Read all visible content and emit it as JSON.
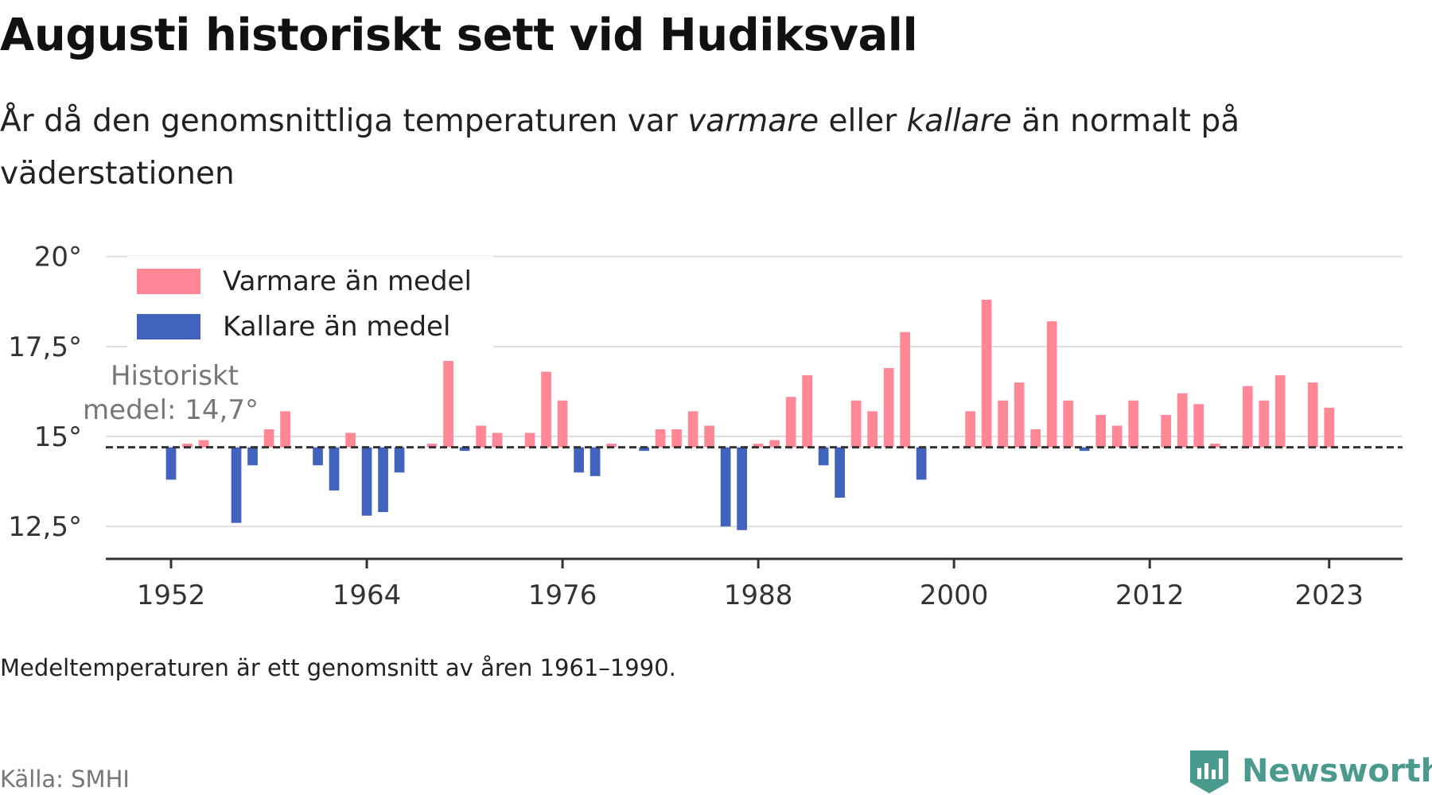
{
  "title": "Augusti historiskt sett vid Hudiksvall",
  "subtitle": {
    "part1": "År då den genomsnittliga temperaturen var ",
    "warm_word": "varmare",
    "part2": " eller ",
    "cold_word": "kallare",
    "part3": " än normalt på väderstationen"
  },
  "footnote": "Medeltemperaturen är ett genomsnitt av åren 1961–1990.",
  "source": "Källa: SMHI",
  "logo": {
    "text": "Newsworthy",
    "icon": "newsworthy-logo-icon",
    "color": "#4a9a8e"
  },
  "chart_data": {
    "type": "bar",
    "baseline": 14.7,
    "baseline_label": [
      "Historiskt",
      "medel: 14,7°"
    ],
    "ylim": [
      11.6,
      20.5
    ],
    "y_ticks": [
      12.5,
      15,
      17.5,
      20
    ],
    "y_tick_labels": [
      "12,5°",
      "15°",
      "17,5°",
      "20°"
    ],
    "xlim": [
      1948,
      2027.5
    ],
    "x_ticks": [
      1952,
      1964,
      1976,
      1988,
      2000,
      2012,
      2023
    ],
    "x_tick_labels": [
      "1952",
      "1964",
      "1976",
      "1988",
      "2000",
      "2012",
      "2023"
    ],
    "grid": true,
    "legend": [
      {
        "label": "Varmare än medel",
        "color": "#ff8796"
      },
      {
        "label": "Kallare än medel",
        "color": "#4163be"
      }
    ],
    "colors": {
      "warm": "#ff8796",
      "cold": "#4163be"
    },
    "years": [
      1952,
      1953,
      1954,
      1955,
      1956,
      1957,
      1958,
      1959,
      1960,
      1961,
      1962,
      1963,
      1964,
      1965,
      1966,
      1967,
      1968,
      1969,
      1970,
      1971,
      1972,
      1973,
      1974,
      1975,
      1976,
      1977,
      1978,
      1979,
      1980,
      1981,
      1982,
      1983,
      1984,
      1985,
      1986,
      1987,
      1988,
      1989,
      1990,
      1991,
      1992,
      1993,
      1994,
      1995,
      1996,
      1997,
      1998,
      1999,
      2000,
      2001,
      2002,
      2003,
      2004,
      2005,
      2006,
      2007,
      2008,
      2009,
      2010,
      2011,
      2012,
      2013,
      2014,
      2015,
      2016,
      2017,
      2018,
      2019,
      2020,
      2021,
      2022,
      2023
    ],
    "values": [
      13.8,
      14.8,
      14.9,
      null,
      12.6,
      14.2,
      15.2,
      15.7,
      null,
      14.2,
      13.5,
      15.1,
      12.8,
      12.9,
      14.0,
      null,
      14.8,
      17.1,
      14.6,
      15.3,
      15.1,
      null,
      15.1,
      16.8,
      16.0,
      14.0,
      13.9,
      14.8,
      null,
      14.6,
      15.2,
      15.2,
      15.7,
      15.3,
      12.5,
      12.4,
      14.8,
      14.9,
      16.1,
      16.7,
      14.2,
      13.3,
      16.0,
      15.7,
      16.9,
      17.9,
      13.8,
      null,
      null,
      15.7,
      18.8,
      16.0,
      16.5,
      15.2,
      18.2,
      16.0,
      14.6,
      15.6,
      15.3,
      16.0,
      null,
      15.6,
      16.2,
      15.9,
      14.8,
      null,
      16.4,
      16.0,
      16.7,
      null,
      16.5,
      15.8
    ]
  }
}
